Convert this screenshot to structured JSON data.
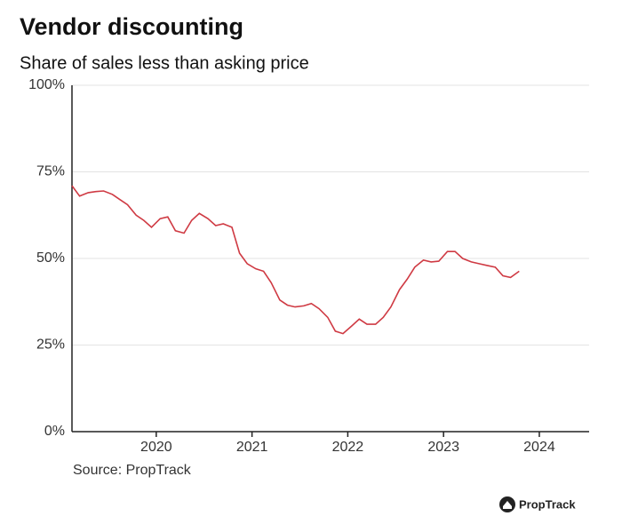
{
  "chart_data": {
    "type": "line",
    "title": "Vendor discounting",
    "subtitle": "Share of sales less than asking price",
    "source": "Source: PropTrack",
    "logo": "PropTrack",
    "x": [
      2019.12,
      2019.2,
      2019.29,
      2019.37,
      2019.45,
      2019.54,
      2019.62,
      2019.7,
      2019.79,
      2019.87,
      2019.95,
      2020.04,
      2020.12,
      2020.2,
      2020.29,
      2020.37,
      2020.45,
      2020.54,
      2020.62,
      2020.7,
      2020.79,
      2020.87,
      2020.95,
      2021.04,
      2021.12,
      2021.2,
      2021.29,
      2021.37,
      2021.45,
      2021.54,
      2021.62,
      2021.7,
      2021.79,
      2021.87,
      2021.95,
      2022.04,
      2022.12,
      2022.2,
      2022.29,
      2022.37,
      2022.45,
      2022.54,
      2022.62,
      2022.7,
      2022.79,
      2022.87,
      2022.95,
      2023.04,
      2023.12,
      2023.2,
      2023.29,
      2023.37,
      2023.45,
      2023.54,
      2023.62,
      2023.7,
      2023.79
    ],
    "series": [
      {
        "name": "Share of sales less than asking price",
        "color": "#cf3a43",
        "values": [
          71,
          68,
          69,
          69.3,
          69.5,
          68.5,
          67,
          65.5,
          62.5,
          61,
          59,
          61.5,
          62,
          58,
          57.3,
          61,
          63,
          61.5,
          59.5,
          60,
          59,
          51.5,
          48.5,
          47,
          46.3,
          43,
          38,
          36.5,
          36,
          36.3,
          37,
          35.5,
          33,
          29,
          28.3,
          30.5,
          32.5,
          31,
          31,
          33,
          36,
          41,
          44,
          47.5,
          49.5,
          49,
          49.2,
          52,
          52,
          50,
          49,
          48.5,
          48,
          47.5,
          45,
          44.5,
          46.3
        ]
      }
    ],
    "xlim": [
      2019.12,
      2024.52
    ],
    "xticks": [
      2020,
      2021,
      2022,
      2023,
      2024
    ],
    "ylim": [
      0,
      100
    ],
    "yticks": [
      {
        "value": 0,
        "label": "0%"
      },
      {
        "value": 25,
        "label": "25%"
      },
      {
        "value": 50,
        "label": "50%"
      },
      {
        "value": 75,
        "label": "75%"
      },
      {
        "value": 100,
        "label": "100%"
      }
    ],
    "grid": true
  }
}
